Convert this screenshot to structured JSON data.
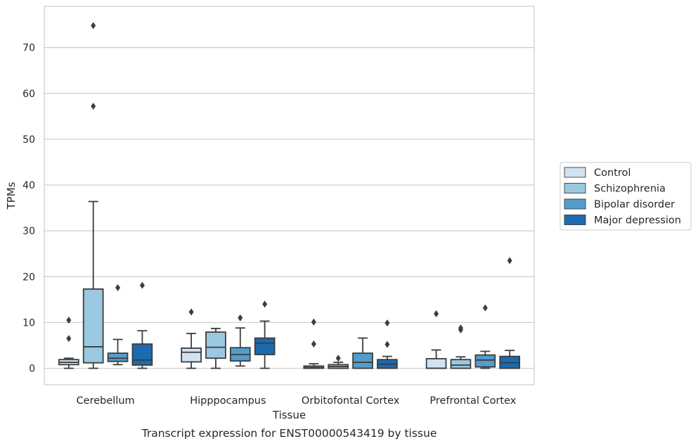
{
  "chart_data": {
    "type": "boxplot",
    "title": "Transcript expression for ENST00000543419 by tissue",
    "xlabel": "Tissue",
    "ylabel": "TPMs",
    "ylim": [
      -3.6,
      79
    ],
    "yticks": [
      0,
      10,
      20,
      30,
      40,
      50,
      60,
      70
    ],
    "grid": "horizontal",
    "legend_position": "right",
    "categories": [
      "Cerebellum",
      "Hipppocampus",
      "Orbitofontal Cortex",
      "Prefrontal Cortex"
    ],
    "series": [
      {
        "name": "Control",
        "color": "#d1e2f1",
        "boxes": [
          {
            "whislo": 0.0,
            "q1": 0.8,
            "med": 1.3,
            "q3": 1.9,
            "whishi": 2.2,
            "fliers": [
              6.5,
              10.5
            ]
          },
          {
            "whislo": 0.0,
            "q1": 1.4,
            "med": 3.5,
            "q3": 4.4,
            "whishi": 7.6,
            "fliers": [
              12.3
            ]
          },
          {
            "whislo": 0.0,
            "q1": 0.0,
            "med": 0.2,
            "q3": 0.5,
            "whishi": 1.0,
            "fliers": [
              5.3,
              10.1
            ]
          },
          {
            "whislo": 0.0,
            "q1": 0.0,
            "med": 0.0,
            "q3": 2.1,
            "whishi": 4.0,
            "fliers": [
              11.9
            ]
          }
        ]
      },
      {
        "name": "Schizophrenia",
        "color": "#9ac8e0",
        "boxes": [
          {
            "whislo": 0.0,
            "q1": 1.2,
            "med": 4.7,
            "q3": 17.3,
            "whishi": 36.4,
            "fliers": [
              57.2,
              74.8
            ]
          },
          {
            "whislo": 0.0,
            "q1": 2.2,
            "med": 4.6,
            "q3": 7.9,
            "whishi": 8.7,
            "fliers": []
          },
          {
            "whislo": 0.0,
            "q1": 0.0,
            "med": 0.4,
            "q3": 0.8,
            "whishi": 1.3,
            "fliers": [
              2.2
            ]
          },
          {
            "whislo": 0.0,
            "q1": 0.0,
            "med": 0.7,
            "q3": 1.9,
            "whishi": 2.5,
            "fliers": [
              8.4,
              8.8
            ]
          }
        ]
      },
      {
        "name": "Bipolar disorder",
        "color": "#529dcc",
        "boxes": [
          {
            "whislo": 0.8,
            "q1": 1.5,
            "med": 2.2,
            "q3": 3.3,
            "whishi": 6.3,
            "fliers": [
              17.6
            ]
          },
          {
            "whislo": 0.5,
            "q1": 1.6,
            "med": 3.0,
            "q3": 4.5,
            "whishi": 8.8,
            "fliers": [
              11.0
            ]
          },
          {
            "whislo": 0.0,
            "q1": 0.0,
            "med": 1.3,
            "q3": 3.3,
            "whishi": 6.6,
            "fliers": []
          },
          {
            "whislo": 0.0,
            "q1": 0.3,
            "med": 1.8,
            "q3": 2.9,
            "whishi": 3.7,
            "fliers": [
              13.2
            ]
          }
        ]
      },
      {
        "name": "Major depression",
        "color": "#1c6aaf",
        "boxes": [
          {
            "whislo": 0.0,
            "q1": 0.7,
            "med": 1.8,
            "q3": 5.3,
            "whishi": 8.2,
            "fliers": [
              18.1
            ]
          },
          {
            "whislo": 0.0,
            "q1": 3.0,
            "med": 5.5,
            "q3": 6.6,
            "whishi": 10.3,
            "fliers": [
              14.0
            ]
          },
          {
            "whislo": 0.0,
            "q1": 0.0,
            "med": 0.9,
            "q3": 1.9,
            "whishi": 2.6,
            "fliers": [
              5.2,
              9.9
            ]
          },
          {
            "whislo": 0.0,
            "q1": 0.0,
            "med": 1.2,
            "q3": 2.6,
            "whishi": 3.9,
            "fliers": [
              23.5
            ]
          }
        ]
      }
    ]
  }
}
